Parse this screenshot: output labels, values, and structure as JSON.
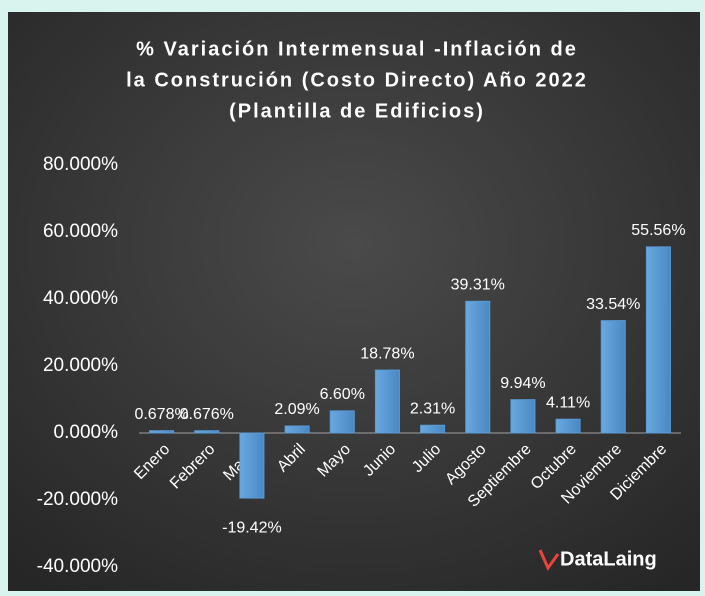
{
  "chart_data": {
    "type": "bar",
    "title": [
      "% Variación Intermensual -Inflación de",
      "la Construción (Costo Directo) Año 2022",
      "(Plantilla de Edificios)"
    ],
    "categories": [
      "Enero",
      "Febrero",
      "Marzo",
      "Abril",
      "Mayo",
      "Junio",
      "Julio",
      "Agosto",
      "Septiembre",
      "Octubre",
      "Noviembre",
      "Diciembre"
    ],
    "values": [
      0.678,
      0.676,
      -19.42,
      2.09,
      6.6,
      18.78,
      2.31,
      39.31,
      9.94,
      4.11,
      33.54,
      55.56
    ],
    "value_labels": [
      "0.678%",
      "0.676%",
      "-19.42%",
      "2.09%",
      "6.60%",
      "18.78%",
      "2.31%",
      "39.31%",
      "9.94%",
      "4.11%",
      "33.54%",
      "55.56%"
    ],
    "color": "#5b9bd5",
    "ylim": [
      -40,
      80
    ],
    "yticks": [
      {
        "value": -40,
        "label": "-40.000%"
      },
      {
        "value": -20,
        "label": "-20.000%"
      },
      {
        "value": 0,
        "label": "0.000%"
      },
      {
        "value": 20,
        "label": "20.000%"
      },
      {
        "value": 40,
        "label": "40.000%"
      },
      {
        "value": 60,
        "label": "60.000%"
      },
      {
        "value": 80,
        "label": "80.000%"
      }
    ],
    "grid": false,
    "logo": "DataLaing"
  }
}
